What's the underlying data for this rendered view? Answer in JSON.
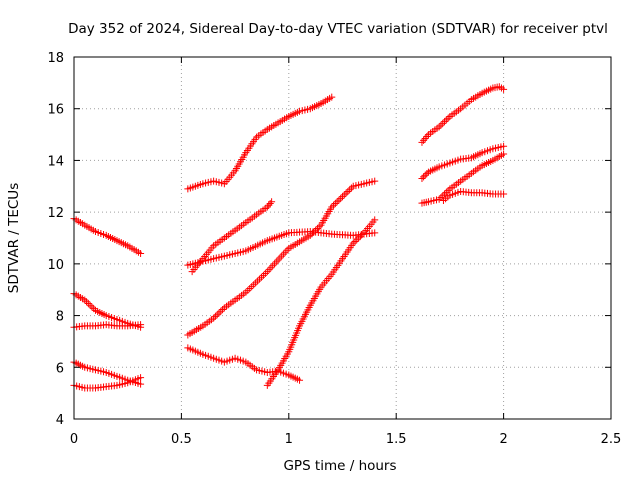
{
  "chart_data": {
    "type": "scatter",
    "title": "Day 352 of 2024, Sidereal Day-to-day VTEC variation (SDTVAR) for receiver ptvl",
    "xlabel": "GPS time / hours",
    "ylabel": "SDTVAR / TECUs",
    "xlim": [
      0,
      2.5
    ],
    "ylim": [
      4,
      18
    ],
    "xticks": [
      "0",
      "0.5",
      "1",
      "1.5",
      "2",
      "2.5"
    ],
    "yticks": [
      "4",
      "6",
      "8",
      "10",
      "12",
      "14",
      "16",
      "18"
    ],
    "grid": true,
    "marker": "+",
    "color": "#ff0000",
    "series": [
      {
        "x": [
          0,
          0.05,
          0.1,
          0.15,
          0.2,
          0.25,
          0.31
        ],
        "y": [
          11.75,
          11.5,
          11.25,
          11.1,
          10.9,
          10.7,
          10.4
        ]
      },
      {
        "x": [
          0,
          0.05,
          0.1,
          0.15,
          0.2,
          0.25,
          0.31
        ],
        "y": [
          8.85,
          8.6,
          8.2,
          8.0,
          7.85,
          7.7,
          7.55
        ]
      },
      {
        "x": [
          0,
          0.05,
          0.1,
          0.15,
          0.2,
          0.25,
          0.31
        ],
        "y": [
          7.55,
          7.6,
          7.6,
          7.65,
          7.6,
          7.6,
          7.65
        ]
      },
      {
        "x": [
          0,
          0.05,
          0.1,
          0.15,
          0.2,
          0.25,
          0.31
        ],
        "y": [
          6.2,
          6.0,
          5.9,
          5.8,
          5.65,
          5.5,
          5.35
        ]
      },
      {
        "x": [
          0,
          0.05,
          0.1,
          0.15,
          0.2,
          0.25,
          0.31
        ],
        "y": [
          5.3,
          5.2,
          5.2,
          5.25,
          5.3,
          5.4,
          5.6
        ]
      },
      {
        "x": [
          0.53,
          0.6,
          0.65,
          0.7,
          0.75,
          0.8,
          0.85,
          0.9,
          0.95,
          1.0,
          1.05,
          1.1,
          1.15,
          1.2
        ],
        "y": [
          12.9,
          13.1,
          13.2,
          13.1,
          13.6,
          14.3,
          14.9,
          15.2,
          15.45,
          15.7,
          15.9,
          16.0,
          16.2,
          16.45
        ]
      },
      {
        "x": [
          0.55,
          0.6,
          0.65,
          0.7,
          0.75,
          0.8,
          0.85,
          0.9,
          0.92
        ],
        "y": [
          9.7,
          10.2,
          10.7,
          11.0,
          11.3,
          11.6,
          11.9,
          12.2,
          12.4
        ]
      },
      {
        "x": [
          0.53,
          0.6,
          0.7,
          0.8,
          0.9,
          1.0,
          1.1,
          1.2,
          1.3,
          1.4
        ],
        "y": [
          9.95,
          10.1,
          10.3,
          10.5,
          10.9,
          11.2,
          11.25,
          11.15,
          11.1,
          11.2
        ]
      },
      {
        "x": [
          0.53,
          0.6,
          0.65,
          0.7,
          0.8,
          0.9,
          1.0,
          1.1,
          1.15,
          1.2,
          1.25,
          1.3,
          1.35,
          1.4
        ],
        "y": [
          7.25,
          7.6,
          7.9,
          8.3,
          8.9,
          9.7,
          10.6,
          11.1,
          11.5,
          12.2,
          12.6,
          13.0,
          13.1,
          13.2
        ]
      },
      {
        "x": [
          0.53,
          0.6,
          0.65,
          0.7,
          0.75,
          0.8,
          0.85,
          0.9,
          0.95,
          1.0,
          1.05
        ],
        "y": [
          6.75,
          6.5,
          6.35,
          6.2,
          6.35,
          6.2,
          5.9,
          5.8,
          5.85,
          5.7,
          5.5
        ]
      },
      {
        "x": [
          0.9,
          0.95,
          1.0,
          1.05,
          1.1,
          1.15,
          1.2,
          1.25,
          1.3,
          1.35,
          1.4
        ],
        "y": [
          5.3,
          5.9,
          6.6,
          7.6,
          8.4,
          9.1,
          9.6,
          10.2,
          10.8,
          11.2,
          11.7
        ]
      },
      {
        "x": [
          1.62,
          1.65,
          1.7,
          1.75,
          1.8,
          1.85,
          1.9,
          1.95,
          1.98,
          2.0
        ],
        "y": [
          14.7,
          15.0,
          15.3,
          15.7,
          16.0,
          16.35,
          16.6,
          16.8,
          16.85,
          16.75
        ]
      },
      {
        "x": [
          1.62,
          1.65,
          1.7,
          1.75,
          1.8,
          1.85,
          1.9,
          1.95,
          2.0
        ],
        "y": [
          13.3,
          13.55,
          13.75,
          13.9,
          14.05,
          14.1,
          14.3,
          14.45,
          14.55
        ]
      },
      {
        "x": [
          1.62,
          1.65,
          1.7,
          1.75,
          1.8,
          1.85,
          1.9,
          1.95,
          2.0
        ],
        "y": [
          12.35,
          12.4,
          12.5,
          12.9,
          13.2,
          13.5,
          13.8,
          14.0,
          14.25
        ]
      },
      {
        "x": [
          1.72,
          1.75,
          1.8,
          1.85,
          1.9,
          1.95,
          2.0
        ],
        "y": [
          12.45,
          12.65,
          12.8,
          12.75,
          12.75,
          12.7,
          12.7
        ]
      }
    ]
  }
}
